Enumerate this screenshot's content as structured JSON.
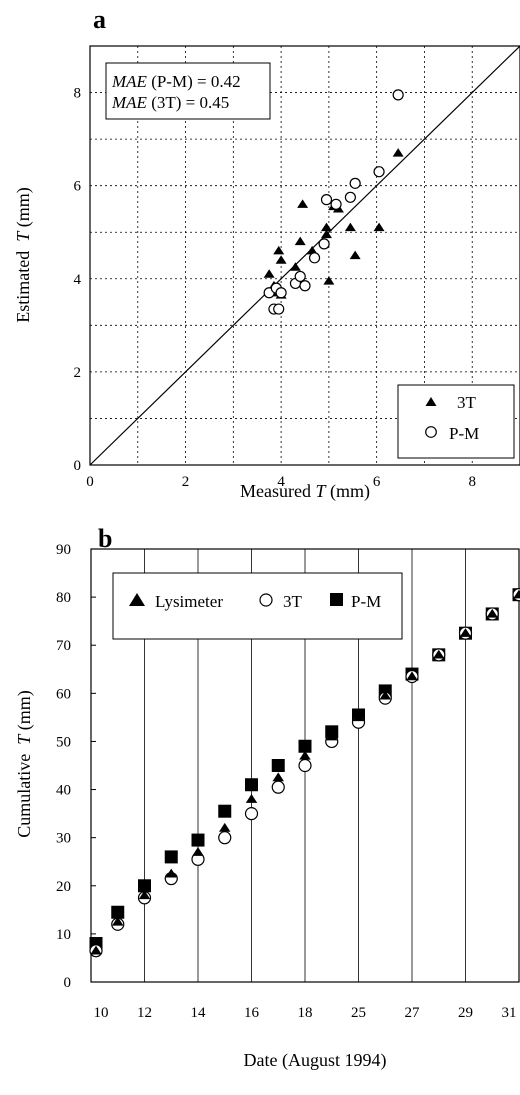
{
  "chart_data": [
    {
      "type": "scatter",
      "panel_label": "a",
      "xlabel_prefix": "Measured ",
      "xlabel_var": "T",
      "xlabel_suffix": " (mm)",
      "ylabel_prefix": "Estimated  ",
      "ylabel_var": "T",
      "ylabel_suffix": " (mm)",
      "xlim": [
        0,
        9
      ],
      "ylim": [
        0,
        9
      ],
      "x_ticks": [
        0,
        2,
        4,
        6,
        8
      ],
      "y_ticks": [
        0,
        2,
        4,
        6,
        8
      ],
      "grid": true,
      "reference_line": "1:1",
      "annotations": [
        {
          "italic": "MAE",
          "rest": " (P-M) = 0.42"
        },
        {
          "italic": "MAE",
          "rest": " (3T) = 0.45"
        }
      ],
      "legend_position": "bottom-right",
      "series": [
        {
          "name": "3T",
          "marker": "filled-triangle",
          "points": [
            [
              3.75,
              4.1
            ],
            [
              3.8,
              3.75
            ],
            [
              3.85,
              3.85
            ],
            [
              3.9,
              3.7
            ],
            [
              3.95,
              4.6
            ],
            [
              4.0,
              4.4
            ],
            [
              4.0,
              3.65
            ],
            [
              4.3,
              4.25
            ],
            [
              4.4,
              4.8
            ],
            [
              4.45,
              5.6
            ],
            [
              4.65,
              4.6
            ],
            [
              4.95,
              4.95
            ],
            [
              4.95,
              5.1
            ],
            [
              5.0,
              3.95
            ],
            [
              5.1,
              5.55
            ],
            [
              5.2,
              5.5
            ],
            [
              5.45,
              5.1
            ],
            [
              5.55,
              4.5
            ],
            [
              6.05,
              5.1
            ],
            [
              6.45,
              6.7
            ]
          ]
        },
        {
          "name": "P-M",
          "marker": "open-circle",
          "points": [
            [
              3.75,
              3.7
            ],
            [
              3.85,
              3.35
            ],
            [
              3.9,
              3.8
            ],
            [
              3.95,
              3.35
            ],
            [
              4.0,
              3.7
            ],
            [
              4.3,
              3.9
            ],
            [
              4.4,
              4.05
            ],
            [
              4.5,
              3.85
            ],
            [
              4.7,
              4.45
            ],
            [
              4.9,
              4.75
            ],
            [
              4.95,
              5.7
            ],
            [
              5.15,
              5.6
            ],
            [
              5.45,
              5.75
            ],
            [
              5.55,
              6.05
            ],
            [
              6.05,
              6.3
            ],
            [
              6.45,
              7.95
            ]
          ]
        }
      ]
    },
    {
      "type": "scatter",
      "panel_label": "b",
      "xlabel": "Date (August 1994)",
      "ylabel_prefix": "Cumulative  ",
      "ylabel_var": "T",
      "ylabel_suffix": " (mm)",
      "categories": [
        "10",
        "11",
        "12",
        "13",
        "14",
        "15",
        "16",
        "17",
        "18",
        "19",
        "25",
        "26",
        "27",
        "28",
        "29",
        "30",
        "31"
      ],
      "x_tick_labels": [
        "10",
        "12",
        "14",
        "16",
        "18",
        "25",
        "27",
        "29",
        "31"
      ],
      "ylim": [
        0,
        90
      ],
      "y_ticks": [
        0,
        10,
        20,
        30,
        40,
        50,
        60,
        70,
        80,
        90
      ],
      "grid": "vertical",
      "legend_position": "top-left",
      "series": [
        {
          "name": "Lysimeter",
          "marker": "filled-triangle",
          "values": [
            6.5,
            12.5,
            18.0,
            22.5,
            27.0,
            32.0,
            38.0,
            42.5,
            47.0,
            51.0,
            55.0,
            59.5,
            63.5,
            68.0,
            72.5,
            76.5,
            80.5
          ]
        },
        {
          "name": "3T",
          "marker": "open-circle",
          "values": [
            6.5,
            12.0,
            17.5,
            21.5,
            25.5,
            30.0,
            35.0,
            40.5,
            45.0,
            50.0,
            54.0,
            59.0,
            63.5,
            68.0,
            72.5,
            76.5,
            80.5
          ]
        },
        {
          "name": "P-M",
          "marker": "filled-square",
          "values": [
            8.0,
            14.5,
            20.0,
            26.0,
            29.5,
            35.5,
            41.0,
            45.0,
            49.0,
            52.0,
            55.5,
            60.5,
            64.0,
            68.0,
            72.5,
            76.5,
            80.5
          ]
        }
      ]
    }
  ]
}
